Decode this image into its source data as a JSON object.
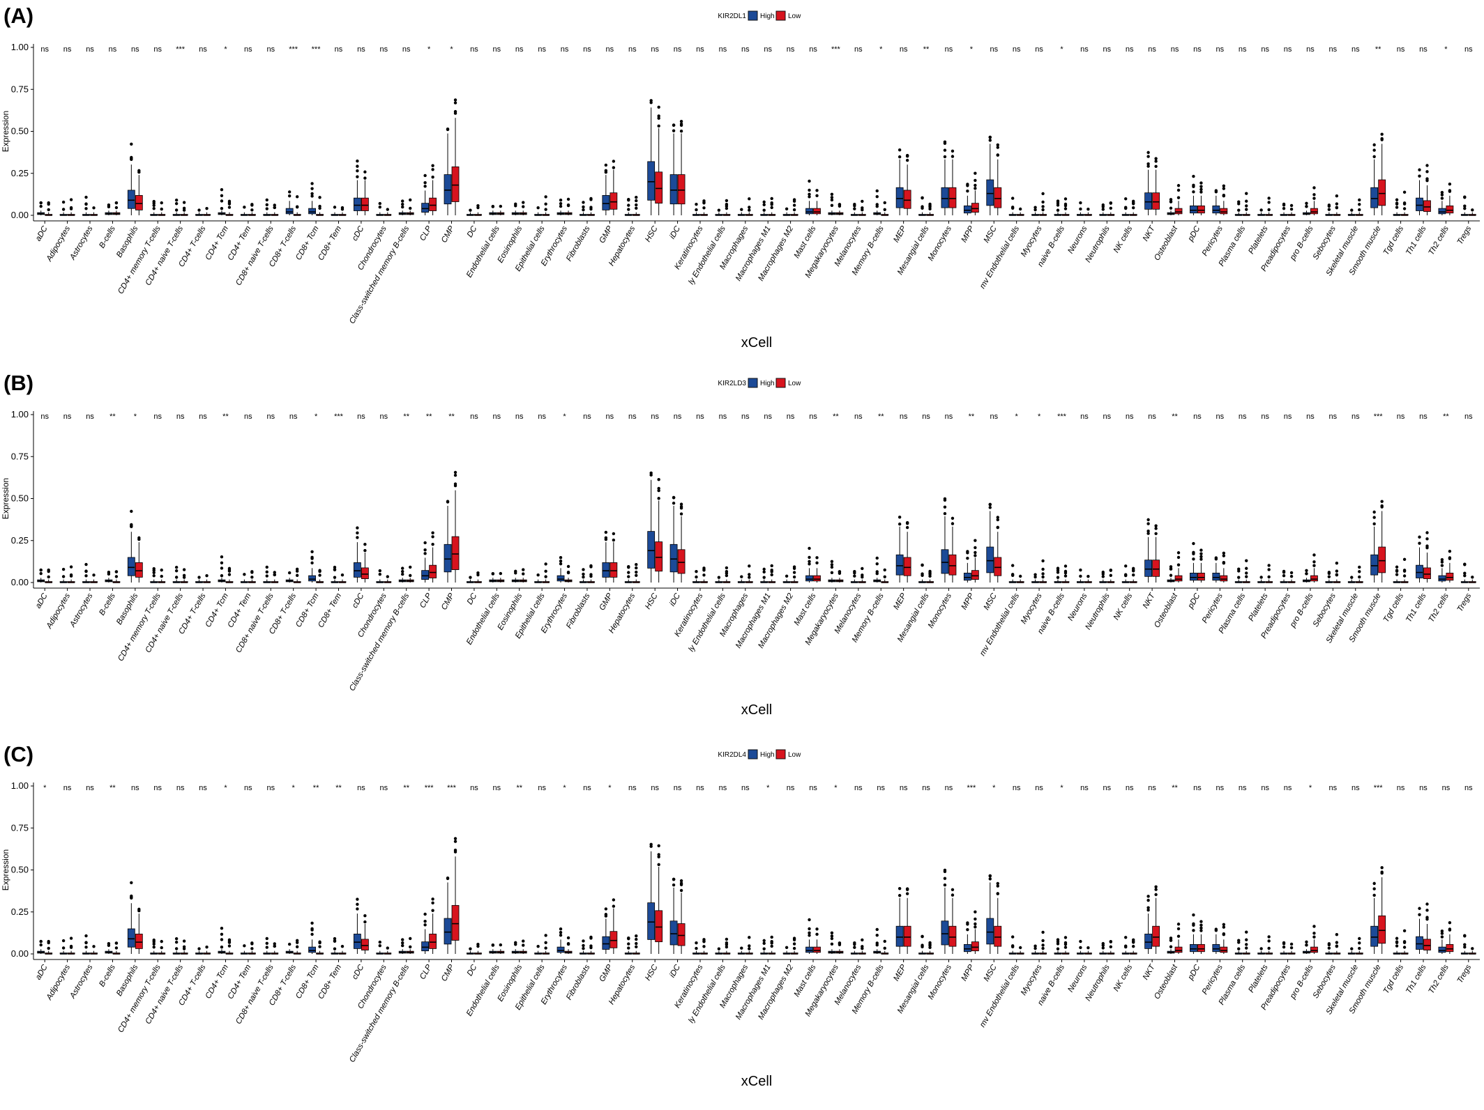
{
  "colors": {
    "High": "#1c4a97",
    "Low": "#d7141e",
    "outline": "#111111"
  },
  "chart_data": [
    {
      "type": "box",
      "panel_label": "(A)",
      "gene": "KIR2DL1",
      "legend": [
        "High",
        "Low"
      ],
      "xlabel": "xCell",
      "ylabel": "Expression",
      "ylim": [
        0,
        1
      ],
      "yticks": [
        "0.00",
        "0.25",
        "0.50",
        "0.75",
        "1.00"
      ],
      "categories": [
        "aDC",
        "Adipocytes",
        "Astrocytes",
        "B-cells",
        "Basophils",
        "CD4+ memory T-cells",
        "CD4+ naive T-cells",
        "CD4+ T-cells",
        "CD4+ Tcm",
        "CD4+ Tem",
        "CD8+ naive T-cells",
        "CD8+ T-cells",
        "CD8+ Tcm",
        "CD8+ Tem",
        "cDC",
        "Chondrocytes",
        "Class-switched memory B-cells",
        "CLP",
        "CMP",
        "DC",
        "Endothelial cells",
        "Eosinophils",
        "Epithelial cells",
        "Erythrocytes",
        "Fibroblasts",
        "GMP",
        "Hepatocytes",
        "HSC",
        "iDC",
        "Keratinocytes",
        "ly Endothelial cells",
        "Macrophages",
        "Macrophages M1",
        "Macrophages M2",
        "Mast cells",
        "Megakaryocytes",
        "Melanocytes",
        "Memory B-cells",
        "MEP",
        "Mesangial cells",
        "Monocytes",
        "MPP",
        "MSC",
        "mv Endothelial cells",
        "Myocytes",
        "naive B-cells",
        "Neurons",
        "Neutrophils",
        "NK cells",
        "NKT",
        "Osteoblast",
        "pDC",
        "Pericytes",
        "Plasma cells",
        "Platelets",
        "Preadipocytes",
        "pro B-cells",
        "Sebocytes",
        "Skeletal muscle",
        "Smooth muscle",
        "Tgd cells",
        "Th1 cells",
        "Th2 cells",
        "Tregs"
      ],
      "significance": [
        "ns",
        "ns",
        "ns",
        "ns",
        "ns",
        "ns",
        "***",
        "ns",
        "*",
        "ns",
        "ns",
        "***",
        "***",
        "ns",
        "ns",
        "ns",
        "ns",
        "*",
        "*",
        "ns",
        "ns",
        "ns",
        "ns",
        "ns",
        "ns",
        "ns",
        "ns",
        "ns",
        "ns",
        "ns",
        "ns",
        "ns",
        "ns",
        "ns",
        "ns",
        "***",
        "ns",
        "*",
        "ns",
        "**",
        "ns",
        "*",
        "ns",
        "ns",
        "ns",
        "*",
        "ns",
        "ns",
        "ns",
        "ns",
        "ns",
        "ns",
        "ns",
        "ns",
        "ns",
        "ns",
        "ns",
        "ns",
        "ns",
        "**",
        "ns",
        "ns",
        "*",
        "ns"
      ],
      "series": [
        {
          "name": "High",
          "median": [
            0.01,
            0,
            0,
            0.01,
            0.09,
            0,
            0,
            0,
            0.01,
            0,
            0,
            0.02,
            0.02,
            0,
            0.06,
            0,
            0.01,
            0.04,
            0.15,
            0,
            0.01,
            0.01,
            0,
            0.01,
            0,
            0.07,
            0,
            0.2,
            0.15,
            0,
            0,
            0,
            0,
            0,
            0.02,
            0.01,
            0,
            0.01,
            0.1,
            0,
            0.1,
            0.03,
            0.13,
            0,
            0,
            0,
            0,
            0,
            0,
            0.08,
            0.01,
            0.03,
            0.03,
            0,
            0,
            0,
            0.01,
            0,
            0,
            0.1,
            0,
            0.06,
            0.02,
            0
          ]
        },
        {
          "name": "Low",
          "median": [
            0,
            0,
            0,
            0.01,
            0.07,
            0,
            0,
            0,
            0,
            0,
            0,
            0,
            0,
            0,
            0.06,
            0,
            0.01,
            0.06,
            0.18,
            0,
            0.01,
            0.01,
            0,
            0.01,
            0,
            0.08,
            0,
            0.16,
            0.15,
            0,
            0,
            0,
            0,
            0,
            0.02,
            0.01,
            0,
            0,
            0.09,
            0,
            0.1,
            0.04,
            0.1,
            0,
            0,
            0,
            0,
            0,
            0,
            0.08,
            0.02,
            0.03,
            0.02,
            0,
            0,
            0,
            0.02,
            0,
            0,
            0.13,
            0,
            0.05,
            0.03,
            0
          ]
        }
      ]
    },
    {
      "type": "box",
      "panel_label": "(B)",
      "gene": "KIR2LD3",
      "legend": [
        "High",
        "Low"
      ],
      "xlabel": "xCell",
      "ylabel": "Expression",
      "ylim": [
        0,
        1
      ],
      "yticks": [
        "0.00",
        "0.25",
        "0.50",
        "0.75",
        "1.00"
      ],
      "categories": [
        "aDC",
        "Adipocytes",
        "Astrocytes",
        "B-cells",
        "Basophils",
        "CD4+ memory T-cells",
        "CD4+ naive T-cells",
        "CD4+ T-cells",
        "CD4+ Tcm",
        "CD4+ Tem",
        "CD8+ naive T-cells",
        "CD8+ T-cells",
        "CD8+ Tcm",
        "CD8+ Tem",
        "cDC",
        "Chondrocytes",
        "Class-switched memory B-cells",
        "CLP",
        "CMP",
        "DC",
        "Endothelial cells",
        "Eosinophils",
        "Epithelial cells",
        "Erythrocytes",
        "Fibroblasts",
        "GMP",
        "Hepatocytes",
        "HSC",
        "iDC",
        "Keratinocytes",
        "ly Endothelial cells",
        "Macrophages",
        "Macrophages M1",
        "Macrophages M2",
        "Mast cells",
        "Megakaryocytes",
        "Melanocytes",
        "Memory B-cells",
        "MEP",
        "Mesangial cells",
        "Monocytes",
        "MPP",
        "MSC",
        "mv Endothelial cells",
        "Myocytes",
        "naive B-cells",
        "Neurons",
        "Neutrophils",
        "NK cells",
        "NKT",
        "Osteoblast",
        "pDC",
        "Pericytes",
        "Plasma cells",
        "Platelets",
        "Preadipocytes",
        "pro B-cells",
        "Sebocytes",
        "Skeletal muscle",
        "Smooth muscle",
        "Tgd cells",
        "Th1 cells",
        "Th2 cells",
        "Tregs"
      ],
      "significance": [
        "ns",
        "ns",
        "ns",
        "**",
        "*",
        "ns",
        "ns",
        "ns",
        "**",
        "ns",
        "ns",
        "ns",
        "*",
        "***",
        "ns",
        "ns",
        "**",
        "**",
        "**",
        "ns",
        "ns",
        "ns",
        "ns",
        "*",
        "ns",
        "ns",
        "ns",
        "ns",
        "ns",
        "ns",
        "ns",
        "ns",
        "ns",
        "ns",
        "ns",
        "**",
        "ns",
        "**",
        "ns",
        "ns",
        "ns",
        "**",
        "ns",
        "*",
        "*",
        "***",
        "ns",
        "ns",
        "ns",
        "ns",
        "**",
        "ns",
        "ns",
        "ns",
        "ns",
        "ns",
        "ns",
        "ns",
        "ns",
        "***",
        "ns",
        "ns",
        "**",
        "ns"
      ],
      "series": [
        {
          "name": "High",
          "median": [
            0.01,
            0,
            0,
            0.01,
            0.09,
            0,
            0,
            0,
            0.01,
            0,
            0,
            0.01,
            0.02,
            0,
            0.07,
            0,
            0.01,
            0.04,
            0.14,
            0,
            0.01,
            0.01,
            0,
            0.02,
            0,
            0.07,
            0,
            0.19,
            0.14,
            0,
            0,
            0,
            0,
            0,
            0.02,
            0.01,
            0,
            0.01,
            0.1,
            0,
            0.12,
            0.03,
            0.13,
            0,
            0,
            0,
            0,
            0,
            0,
            0.08,
            0.01,
            0.03,
            0.03,
            0,
            0,
            0,
            0.01,
            0,
            0,
            0.1,
            0,
            0.06,
            0.02,
            0
          ]
        },
        {
          "name": "Low",
          "median": [
            0,
            0,
            0,
            0,
            0.07,
            0,
            0,
            0,
            0,
            0,
            0,
            0,
            0,
            0,
            0.05,
            0,
            0.01,
            0.06,
            0.17,
            0,
            0.01,
            0.01,
            0,
            0.01,
            0,
            0.07,
            0,
            0.15,
            0.12,
            0,
            0,
            0,
            0,
            0,
            0.02,
            0.01,
            0,
            0,
            0.09,
            0,
            0.1,
            0.04,
            0.09,
            0,
            0,
            0,
            0,
            0,
            0,
            0.08,
            0.02,
            0.03,
            0.02,
            0,
            0,
            0,
            0.02,
            0,
            0,
            0.13,
            0,
            0.05,
            0.03,
            0
          ]
        }
      ]
    },
    {
      "type": "box",
      "panel_label": "(C)",
      "gene": "KIR2DL4",
      "legend": [
        "High",
        "Low"
      ],
      "xlabel": "xCell",
      "ylabel": "Expression",
      "ylim": [
        0,
        1
      ],
      "yticks": [
        "0.00",
        "0.25",
        "0.50",
        "0.75",
        "1.00"
      ],
      "categories": [
        "aDC",
        "Adipocytes",
        "Astrocytes",
        "B-cells",
        "Basophils",
        "CD4+ memory T-cells",
        "CD4+ naive T-cells",
        "CD4+ T-cells",
        "CD4+ Tcm",
        "CD4+ Tem",
        "CD8+ naive T-cells",
        "CD8+ T-cells",
        "CD8+ Tcm",
        "CD8+ Tem",
        "cDC",
        "Chondrocytes",
        "Class-switched memory B-cells",
        "CLP",
        "CMP",
        "DC",
        "Endothelial cells",
        "Eosinophils",
        "Epithelial cells",
        "Erythrocytes",
        "Fibroblasts",
        "GMP",
        "Hepatocytes",
        "HSC",
        "iDC",
        "Keratinocytes",
        "ly Endothelial cells",
        "Macrophages",
        "Macrophages M1",
        "Macrophages M2",
        "Mast cells",
        "Megakaryocytes",
        "Melanocytes",
        "Memory B-cells",
        "MEP",
        "Mesangial cells",
        "Monocytes",
        "MPP",
        "MSC",
        "mv Endothelial cells",
        "Myocytes",
        "naive B-cells",
        "Neurons",
        "Neutrophils",
        "NK cells",
        "NKT",
        "Osteoblast",
        "pDC",
        "Pericytes",
        "Plasma cells",
        "Platelets",
        "Preadipocytes",
        "pro B-cells",
        "Sebocytes",
        "Skeletal muscle",
        "Smooth muscle",
        "Tgd cells",
        "Th1 cells",
        "Th2 cells",
        "Tregs"
      ],
      "significance": [
        "*",
        "ns",
        "ns",
        "**",
        "ns",
        "ns",
        "ns",
        "ns",
        "*",
        "ns",
        "ns",
        "*",
        "**",
        "**",
        "ns",
        "ns",
        "**",
        "***",
        "***",
        "ns",
        "ns",
        "**",
        "ns",
        "*",
        "ns",
        "*",
        "ns",
        "ns",
        "ns",
        "ns",
        "ns",
        "ns",
        "*",
        "ns",
        "ns",
        "*",
        "ns",
        "ns",
        "ns",
        "ns",
        "ns",
        "***",
        "*",
        "ns",
        "ns",
        "*",
        "ns",
        "ns",
        "ns",
        "ns",
        "**",
        "ns",
        "ns",
        "ns",
        "ns",
        "ns",
        "*",
        "ns",
        "ns",
        "***",
        "ns",
        "ns",
        "ns",
        "ns"
      ],
      "series": [
        {
          "name": "High",
          "median": [
            0.01,
            0,
            0,
            0.01,
            0.09,
            0,
            0,
            0,
            0.01,
            0,
            0,
            0.01,
            0.02,
            0,
            0.07,
            0,
            0.01,
            0.04,
            0.13,
            0,
            0.01,
            0.01,
            0,
            0.02,
            0,
            0.06,
            0,
            0.19,
            0.12,
            0,
            0,
            0,
            0,
            0,
            0.02,
            0.01,
            0,
            0.01,
            0.1,
            0,
            0.12,
            0.03,
            0.13,
            0,
            0,
            0,
            0,
            0,
            0,
            0.07,
            0.01,
            0.03,
            0.03,
            0,
            0,
            0,
            0.01,
            0,
            0,
            0.1,
            0,
            0.06,
            0.02,
            0
          ]
        },
        {
          "name": "Low",
          "median": [
            0,
            0,
            0,
            0,
            0.07,
            0,
            0,
            0,
            0,
            0,
            0,
            0,
            0,
            0,
            0.05,
            0,
            0.01,
            0.07,
            0.18,
            0,
            0.01,
            0.01,
            0,
            0.01,
            0,
            0.08,
            0,
            0.16,
            0.11,
            0,
            0,
            0,
            0,
            0,
            0.02,
            0.01,
            0,
            0,
            0.1,
            0,
            0.1,
            0.04,
            0.1,
            0,
            0,
            0,
            0,
            0,
            0,
            0.1,
            0.02,
            0.03,
            0.02,
            0,
            0,
            0,
            0.02,
            0,
            0,
            0.14,
            0,
            0.05,
            0.03,
            0
          ]
        }
      ]
    }
  ]
}
